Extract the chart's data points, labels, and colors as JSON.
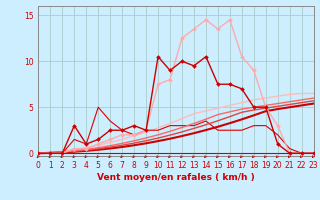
{
  "bg_color": "#cceeff",
  "grid_color": "#aacccc",
  "xlabel": "Vent moyen/en rafales ( km/h )",
  "xlim": [
    0,
    23
  ],
  "ylim": [
    -0.3,
    16
  ],
  "yticks": [
    0,
    5,
    10,
    15
  ],
  "xticks": [
    0,
    1,
    2,
    3,
    4,
    5,
    6,
    7,
    8,
    9,
    10,
    11,
    12,
    13,
    14,
    15,
    16,
    17,
    18,
    19,
    20,
    21,
    22,
    23
  ],
  "lines": [
    {
      "x": [
        0,
        1,
        2,
        3,
        4,
        5,
        6,
        7,
        8,
        9,
        10,
        11,
        12,
        13,
        14,
        15,
        16,
        17,
        18,
        19,
        20,
        21,
        22,
        23
      ],
      "y": [
        0,
        0,
        0,
        3,
        1,
        1.5,
        2.5,
        2.5,
        3,
        2.5,
        10.5,
        9,
        10,
        9.5,
        10.5,
        7.5,
        7.5,
        7,
        5,
        5,
        1,
        0,
        0,
        0
      ],
      "color": "#cc0000",
      "lw": 1.0,
      "marker": "D",
      "ms": 2.0,
      "zorder": 5
    },
    {
      "x": [
        0,
        1,
        2,
        3,
        4,
        5,
        6,
        7,
        8,
        9,
        10,
        11,
        12,
        13,
        14,
        15,
        16,
        17,
        18,
        19,
        20,
        21,
        22,
        23
      ],
      "y": [
        0,
        0,
        0,
        0.5,
        0.5,
        1,
        1.5,
        2,
        2,
        2.5,
        7.5,
        8,
        12.5,
        13.5,
        14.5,
        13.5,
        14.5,
        10.5,
        9,
        5,
        3,
        0,
        0,
        0
      ],
      "color": "#ffaaaa",
      "lw": 1.0,
      "marker": "D",
      "ms": 2.0,
      "zorder": 4
    },
    {
      "x": [
        0,
        1,
        2,
        3,
        4,
        5,
        6,
        7,
        8,
        9,
        10,
        11,
        12,
        13,
        14,
        15,
        16,
        17,
        18,
        19,
        20,
        21,
        22,
        23
      ],
      "y": [
        0,
        0.04,
        0.09,
        0.17,
        0.26,
        0.38,
        0.52,
        0.68,
        0.87,
        1.08,
        1.32,
        1.58,
        1.87,
        2.18,
        2.52,
        2.88,
        3.27,
        3.68,
        4.12,
        4.57,
        4.8,
        5.0,
        5.2,
        5.4
      ],
      "color": "#cc0000",
      "lw": 1.5,
      "marker": null,
      "ms": 0,
      "zorder": 3
    },
    {
      "x": [
        0,
        1,
        2,
        3,
        4,
        5,
        6,
        7,
        8,
        9,
        10,
        11,
        12,
        13,
        14,
        15,
        16,
        17,
        18,
        19,
        20,
        21,
        22,
        23
      ],
      "y": [
        0,
        0.05,
        0.12,
        0.22,
        0.34,
        0.49,
        0.67,
        0.87,
        1.1,
        1.36,
        1.65,
        1.97,
        2.32,
        2.7,
        3.1,
        3.53,
        3.98,
        4.45,
        4.7,
        4.9,
        5.1,
        5.3,
        5.5,
        5.7
      ],
      "color": "#dd4444",
      "lw": 1.0,
      "marker": null,
      "ms": 0,
      "zorder": 3
    },
    {
      "x": [
        0,
        1,
        2,
        3,
        4,
        5,
        6,
        7,
        8,
        9,
        10,
        11,
        12,
        13,
        14,
        15,
        16,
        17,
        18,
        19,
        20,
        21,
        22,
        23
      ],
      "y": [
        0,
        0.06,
        0.14,
        0.26,
        0.42,
        0.6,
        0.82,
        1.07,
        1.35,
        1.66,
        2.0,
        2.38,
        2.8,
        3.24,
        3.7,
        4.2,
        4.5,
        4.8,
        5.0,
        5.2,
        5.4,
        5.6,
        5.8,
        6.0
      ],
      "color": "#ff6666",
      "lw": 1.0,
      "marker": null,
      "ms": 0,
      "zorder": 3
    },
    {
      "x": [
        0,
        1,
        2,
        3,
        4,
        5,
        6,
        7,
        8,
        9,
        10,
        11,
        12,
        13,
        14,
        15,
        16,
        17,
        18,
        19,
        20,
        21,
        22,
        23
      ],
      "y": [
        0,
        0.1,
        0.22,
        0.4,
        0.62,
        0.88,
        1.18,
        1.52,
        1.9,
        2.3,
        2.75,
        3.24,
        3.76,
        4.3,
        4.6,
        4.9,
        5.2,
        5.5,
        5.8,
        6.0,
        6.2,
        6.4,
        6.5,
        6.5
      ],
      "color": "#ffbbbb",
      "lw": 1.0,
      "marker": null,
      "ms": 0,
      "zorder": 2
    },
    {
      "x": [
        0,
        1,
        2,
        3,
        4,
        5,
        6,
        7,
        8,
        9,
        10,
        11,
        12,
        13,
        14,
        15,
        16,
        17,
        18,
        19,
        20,
        21,
        22,
        23
      ],
      "y": [
        0,
        0,
        0,
        1.5,
        1.0,
        5.0,
        3.5,
        2.5,
        2.0,
        2.5,
        2.5,
        3.0,
        3.0,
        3.0,
        3.5,
        2.5,
        2.5,
        2.5,
        3.0,
        3.0,
        2.0,
        0.5,
        0,
        0
      ],
      "color": "#dd0000",
      "lw": 0.8,
      "marker": null,
      "ms": 0,
      "zorder": 2
    }
  ],
  "arrow_color": "#cc0000",
  "tick_color": "#cc0000",
  "spine_color": "#888888",
  "xlabel_color": "#cc0000",
  "xlabel_fontsize": 6.5,
  "tick_fontsize": 5.5
}
